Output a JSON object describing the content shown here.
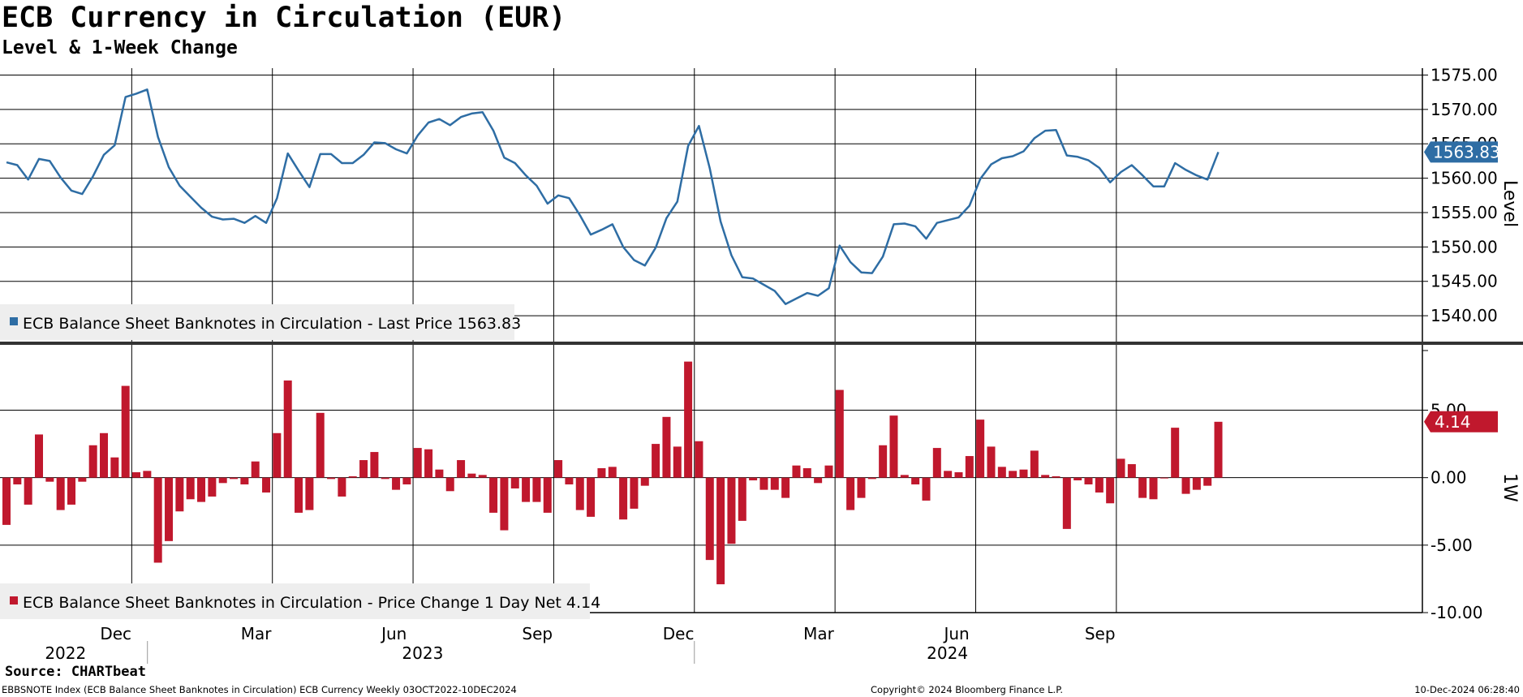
{
  "header": {
    "title": "ECB Currency in Circulation (EUR)",
    "subtitle": "Level & 1-Week Change"
  },
  "footer": {
    "source": "Source: CHARTbeat",
    "index_info": "EBBSNOTE Index (ECB Balance Sheet Banknotes in Circulation) ECB Currency  Weekly 03OCT2022-10DEC2024",
    "copyright": "Copyright© 2024 Bloomberg Finance L.P.",
    "timestamp": "10-Dec-2024 06:28:40"
  },
  "colors": {
    "level_line": "#2e6da4",
    "bars": "#c0182d",
    "legend_bg": "#eeeeee",
    "grid": "#000000"
  },
  "chart_data": [
    {
      "type": "line",
      "name": "level",
      "legend": "ECB Balance Sheet Banknotes in Circulation - Last Price 1563.83",
      "ylabel": "Level",
      "ylim": [
        1536,
        1576
      ],
      "yticks": [
        "1575.00",
        "1570.00",
        "1565.00",
        "1560.00",
        "1555.00",
        "1550.00",
        "1545.00",
        "1540.00"
      ],
      "last_value_label": "1563.83",
      "values": [
        1562.3,
        1561.9,
        1559.8,
        1562.8,
        1562.5,
        1560.1,
        1558.2,
        1557.7,
        1560.3,
        1563.4,
        1564.8,
        1571.8,
        1572.3,
        1572.9,
        1566.0,
        1561.6,
        1558.9,
        1557.3,
        1555.7,
        1554.4,
        1554.0,
        1554.1,
        1553.5,
        1554.5,
        1553.5,
        1557.1,
        1563.6,
        1561.1,
        1558.7,
        1563.5,
        1563.5,
        1562.2,
        1562.2,
        1563.4,
        1565.2,
        1565.1,
        1564.2,
        1563.6,
        1566.2,
        1568.1,
        1568.6,
        1567.7,
        1568.9,
        1569.4,
        1569.6,
        1566.9,
        1563.0,
        1562.2,
        1560.4,
        1558.9,
        1556.3,
        1557.5,
        1557.1,
        1554.6,
        1551.8,
        1552.5,
        1553.3,
        1550.0,
        1548.1,
        1547.3,
        1549.9,
        1554.2,
        1556.6,
        1564.7,
        1567.6,
        1561.4,
        1553.7,
        1548.8,
        1545.6,
        1545.4,
        1544.5,
        1543.6,
        1541.7,
        1542.5,
        1543.3,
        1542.9,
        1544.0,
        1550.2,
        1547.8,
        1546.3,
        1546.2,
        1548.6,
        1553.3,
        1553.4,
        1553.0,
        1551.2,
        1553.5,
        1553.9,
        1554.3,
        1556.0,
        1559.9,
        1562.0,
        1562.9,
        1563.2,
        1563.9,
        1565.8,
        1566.9,
        1567.0,
        1563.3,
        1563.1,
        1562.6,
        1561.5,
        1559.4,
        1560.9,
        1561.9,
        1560.4,
        1558.8,
        1558.8,
        1562.2,
        1561.2,
        1560.4,
        1559.8,
        1563.8
      ]
    },
    {
      "type": "bar",
      "name": "1w_change",
      "legend": "ECB Balance Sheet Banknotes in Circulation - Price Change 1 Day Net 4.14",
      "ylabel": "1W",
      "ylim": [
        -10.0,
        9.9
      ],
      "yticks": [
        "5.00",
        "0.00",
        "-5.00",
        "-10.00"
      ],
      "last_value_label": "4.14",
      "values": [
        -3.5,
        -0.5,
        -2.0,
        3.2,
        -0.3,
        -2.4,
        -2.0,
        -0.3,
        2.4,
        3.3,
        1.5,
        6.8,
        0.4,
        0.5,
        -6.3,
        -4.7,
        -2.5,
        -1.6,
        -1.8,
        -1.4,
        -0.4,
        -0.1,
        -0.5,
        1.2,
        -1.1,
        3.3,
        7.2,
        -2.6,
        -2.4,
        4.8,
        -0.1,
        -1.4,
        0.1,
        1.3,
        1.9,
        -0.1,
        -0.9,
        -0.5,
        2.2,
        2.1,
        0.6,
        -1.0,
        1.3,
        0.3,
        0.2,
        -2.6,
        -3.9,
        -0.8,
        -1.8,
        -1.8,
        -2.6,
        1.3,
        -0.5,
        -2.4,
        -2.9,
        0.7,
        0.8,
        -3.1,
        -2.3,
        -0.6,
        2.5,
        4.5,
        2.3,
        8.6,
        2.7,
        -6.1,
        -7.9,
        -4.9,
        -3.2,
        -0.2,
        -0.9,
        -0.9,
        -1.5,
        0.9,
        0.7,
        -0.4,
        0.9,
        6.5,
        -2.4,
        -1.5,
        -0.1,
        2.4,
        4.6,
        0.2,
        -0.5,
        -1.7,
        2.2,
        0.5,
        0.4,
        1.6,
        4.3,
        2.3,
        0.8,
        0.5,
        0.6,
        2.0,
        0.2,
        0.1,
        -3.8,
        -0.2,
        -0.5,
        -1.1,
        -1.9,
        1.4,
        1.0,
        -1.5,
        -1.6,
        0.0,
        3.7,
        -1.2,
        -0.9,
        -0.6,
        4.14
      ]
    }
  ],
  "x_axis": {
    "month_labels": [
      "Dec",
      "Mar",
      "Jun",
      "Sep",
      "Dec",
      "Mar",
      "Jun",
      "Sep"
    ],
    "month_week_index": [
      12,
      25,
      38,
      51,
      64,
      77,
      90,
      103
    ],
    "year_labels": [
      "2022",
      "2023",
      "2024"
    ],
    "year_week_index": [
      5.5,
      38.5,
      87
    ]
  }
}
